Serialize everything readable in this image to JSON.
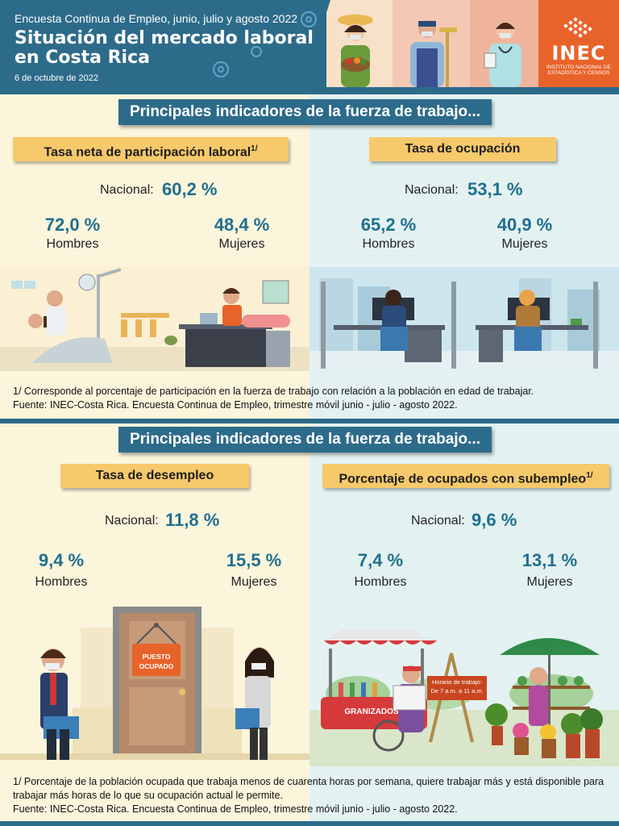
{
  "header": {
    "subtitle": "Encuesta Continua de Empleo, junio, julio y agosto 2022",
    "title_line1": "Situación del mercado laboral",
    "title_line2": "en Costa Rica",
    "date": "6 de octubre de 2022",
    "logo_text": "INEC",
    "logo_subtext1": "INSTITUTO NACIONAL DE",
    "logo_subtext2": "ESTADÍSTICA Y CENSOS"
  },
  "section1": {
    "banner": "Principales indicadores de la fuerza de trabajo...",
    "left": {
      "label": "Tasa neta de participación laboral",
      "label_sup": "1/",
      "national_label": "Nacional:",
      "national_value": "60,2 %",
      "men_value": "72,0 %",
      "men_label": "Hombres",
      "women_value": "48,4 %",
      "women_label": "Mujeres"
    },
    "right": {
      "label": "Tasa de ocupación",
      "national_label": "Nacional:",
      "national_value": "53,1 %",
      "men_value": "65,2 %",
      "men_label": "Hombres",
      "women_value": "40,9 %",
      "women_label": "Mujeres"
    },
    "note1": "1/ Corresponde al porcentaje de participación en la fuerza de trabajo con relación a la población en edad de trabajar.",
    "source": "Fuente: INEC-Costa Rica. Encuesta Continua de Empleo, trimestre móvil junio - julio - agosto 2022."
  },
  "section2": {
    "banner": "Principales indicadores de la fuerza de trabajo...",
    "left": {
      "label": "Tasa de desempleo",
      "national_label": "Nacional:",
      "national_value": "11,8 %",
      "men_value": "9,4 %",
      "men_label": "Hombres",
      "women_value": "15,5 %",
      "women_label": "Mujeres",
      "sign_line1": "PUESTO",
      "sign_line2": "OCUPADO"
    },
    "right": {
      "label": "Porcentaje de ocupados con subempleo",
      "label_sup": "1/",
      "national_label": "Nacional:",
      "national_value": "9,6 %",
      "men_value": "7,4 %",
      "men_label": "Hombres",
      "women_value": "13,1 %",
      "women_label": "Mujeres",
      "cart_label": "GRANIZADOS",
      "schedule_line1": "Horario de trabajo:",
      "schedule_line2": "De 7 a.m. a 11 a.m."
    },
    "note1_line1": "1/ Porcentaje de la población ocupada que trabaja menos de cuarenta horas por semana, quiere trabajar más y está disponible para",
    "note1_line2": "trabajar más horas de lo que su ocupación actual le permite.",
    "source": "Fuente: INEC-Costa Rica. Encuesta Continua de Empleo, trimestre móvil junio - julio - agosto 2022."
  },
  "colors": {
    "primary_teal": "#2d6b8a",
    "value_blue": "#1f6f8f",
    "label_yellow": "#f6c96b",
    "panel_cream": "#fbf5dc",
    "panel_mint": "#e3f2f1",
    "inec_orange": "#e8632a"
  }
}
